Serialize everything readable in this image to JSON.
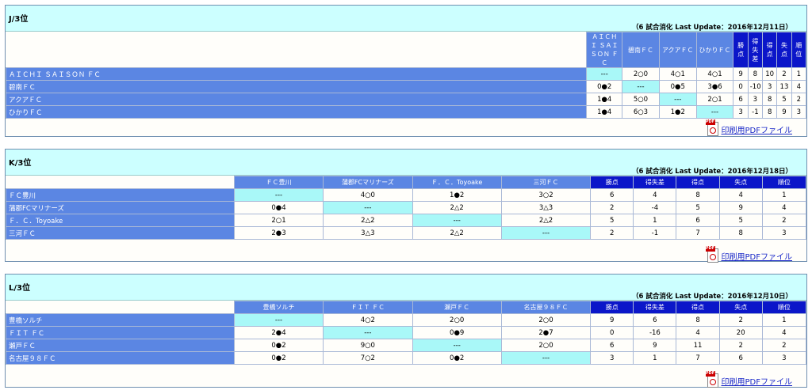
{
  "panels": [
    {
      "title": "J/3位",
      "update": "（6 試合消化 Last Update：2016年12月11日）",
      "team_headers": [
        "ＡＩＣＨＩ ＳＡＩＳＯＮ ＦＣ",
        "碧南ＦＣ",
        "アクアＦＣ",
        "ひかりＦＣ"
      ],
      "stat_headers": [
        "勝点",
        "得失差",
        "得点",
        "失点",
        "順位"
      ],
      "rows": [
        {
          "team": "ＡＩＣＨＩ ＳＡＩＳＯＮ ＦＣ",
          "results": [
            "---",
            "2○0",
            "4○1",
            "4○1"
          ],
          "stats": [
            "9",
            "8",
            "10",
            "2",
            "1"
          ]
        },
        {
          "team": "碧南ＦＣ",
          "results": [
            "0●2",
            "---",
            "0●5",
            "3●6"
          ],
          "stats": [
            "0",
            "-10",
            "3",
            "13",
            "4"
          ]
        },
        {
          "team": "アクアＦＣ",
          "results": [
            "1●4",
            "5○0",
            "---",
            "2○1"
          ],
          "stats": [
            "6",
            "3",
            "8",
            "5",
            "2"
          ]
        },
        {
          "team": "ひかりＦＣ",
          "results": [
            "1●4",
            "6○3",
            "1●2",
            "---"
          ],
          "stats": [
            "3",
            "-1",
            "8",
            "9",
            "3"
          ]
        }
      ],
      "pdf_label": "印刷用PDFファイル"
    },
    {
      "title": "K/3位",
      "update": "（6 試合消化 Last Update：2016年12月18日）",
      "team_headers": [
        "ＦＣ豊川",
        "蒲郡FCマリナーズ",
        "Ｆ．Ｃ．Toyoake",
        "三河ＦＣ"
      ],
      "stat_headers": [
        "勝点",
        "得失差",
        "得点",
        "失点",
        "順位"
      ],
      "rows": [
        {
          "team": "ＦＣ豊川",
          "results": [
            "---",
            "4○0",
            "1●2",
            "3○2"
          ],
          "stats": [
            "6",
            "4",
            "8",
            "4",
            "1"
          ]
        },
        {
          "team": "蒲郡FCマリナーズ",
          "results": [
            "0●4",
            "---",
            "2△2",
            "3△3"
          ],
          "stats": [
            "2",
            "-4",
            "5",
            "9",
            "4"
          ]
        },
        {
          "team": "Ｆ．Ｃ．Toyoake",
          "results": [
            "2○1",
            "2△2",
            "---",
            "2△2"
          ],
          "stats": [
            "5",
            "1",
            "6",
            "5",
            "2"
          ]
        },
        {
          "team": "三河ＦＣ",
          "results": [
            "2●3",
            "3△3",
            "2△2",
            "---"
          ],
          "stats": [
            "2",
            "-1",
            "7",
            "8",
            "3"
          ]
        }
      ],
      "pdf_label": "印刷用PDFファイル"
    },
    {
      "title": "L/3位",
      "update": "（6 試合消化 Last Update：2016年12月10日）",
      "team_headers": [
        "豊橋ソルチ",
        "ＦＩＴ ＦＣ",
        "瀬戸ＦＣ",
        "名古屋９８ＦＣ"
      ],
      "stat_headers": [
        "勝点",
        "得失差",
        "得点",
        "失点",
        "順位"
      ],
      "rows": [
        {
          "team": "豊橋ソルチ",
          "results": [
            "---",
            "4○2",
            "2○0",
            "2○0"
          ],
          "stats": [
            "9",
            "6",
            "8",
            "2",
            "1"
          ]
        },
        {
          "team": "ＦＩＴ ＦＣ",
          "results": [
            "2●4",
            "---",
            "0●9",
            "2●7"
          ],
          "stats": [
            "0",
            "-16",
            "4",
            "20",
            "4"
          ]
        },
        {
          "team": "瀬戸ＦＣ",
          "results": [
            "0●2",
            "9○0",
            "---",
            "2○0"
          ],
          "stats": [
            "6",
            "9",
            "11",
            "2",
            "2"
          ]
        },
        {
          "team": "名古屋９８ＦＣ",
          "results": [
            "0●2",
            "7○2",
            "0●2",
            "---"
          ],
          "stats": [
            "3",
            "1",
            "7",
            "6",
            "3"
          ]
        }
      ],
      "pdf_label": "印刷用PDFファイル"
    }
  ],
  "pdf_icon_text": "PDF",
  "colors": {
    "header_bg": "#ccffff",
    "team_bg": "#5b86e3",
    "stat_bg": "#0b16c9",
    "self_bg": "#a9f8f8"
  }
}
